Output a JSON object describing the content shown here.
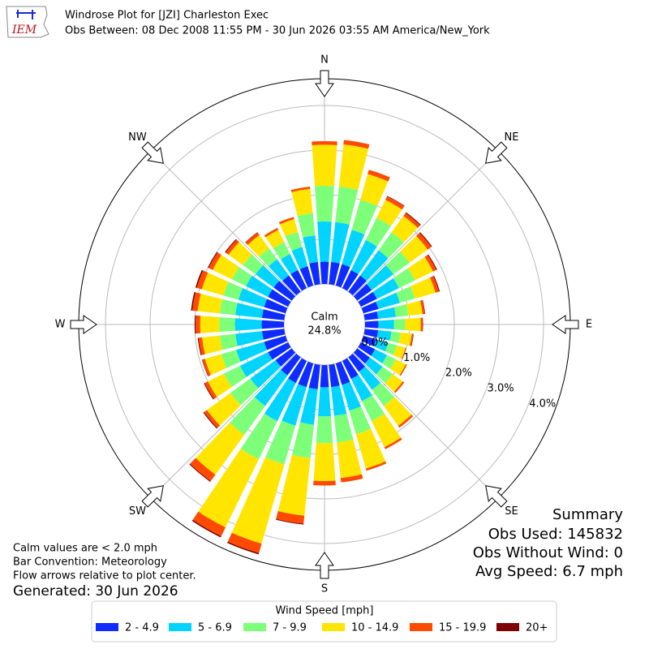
{
  "header": {
    "logo_text": "IEM",
    "title": "Windrose Plot for [JZI] Charleston Exec",
    "subtitle": "Obs Between: 08 Dec 2008 11:55 PM - 30 Jun 2026 03:55 AM America/New_York"
  },
  "chart_data": {
    "type": "windrose",
    "x": [
      0,
      10,
      20,
      30,
      40,
      50,
      60,
      70,
      80,
      90,
      100,
      110,
      120,
      130,
      140,
      150,
      160,
      170,
      180,
      190,
      200,
      210,
      220,
      230,
      240,
      250,
      260,
      270,
      280,
      290,
      300,
      310,
      320,
      330,
      340,
      350
    ],
    "xticks": [
      {
        "value": 0,
        "label": "N"
      },
      {
        "value": 45,
        "label": "NE"
      },
      {
        "value": 90,
        "label": "E"
      },
      {
        "value": 135,
        "label": "SE"
      },
      {
        "value": 180,
        "label": "S"
      },
      {
        "value": 225,
        "label": "SW"
      },
      {
        "value": 270,
        "label": "W"
      },
      {
        "value": 315,
        "label": "NW"
      }
    ],
    "ylim": [
      0,
      4.6
    ],
    "yticks": [
      {
        "value": 0,
        "label": "0.0%"
      },
      {
        "value": 1,
        "label": "1.0%"
      },
      {
        "value": 2,
        "label": "2.0%"
      },
      {
        "value": 3,
        "label": "3.0%"
      },
      {
        "value": 4,
        "label": "4.0%"
      }
    ],
    "calm_label": "Calm",
    "calm_value": 24.8,
    "calm_value_label": "24.8%",
    "legend_title": "Wind Speed [mph]",
    "series": [
      {
        "name": "2 - 4.9",
        "color": "#0f2cff",
        "values": [
          0.5,
          0.5,
          0.5,
          0.45,
          0.45,
          0.4,
          0.4,
          0.35,
          0.3,
          0.3,
          0.3,
          0.3,
          0.35,
          0.35,
          0.4,
          0.45,
          0.5,
          0.5,
          0.5,
          0.55,
          0.55,
          0.55,
          0.5,
          0.45,
          0.5,
          0.5,
          0.5,
          0.5,
          0.5,
          0.5,
          0.5,
          0.5,
          0.45,
          0.45,
          0.45,
          0.5
        ]
      },
      {
        "name": "5 - 6.9",
        "color": "#00d4ff",
        "values": [
          0.9,
          0.9,
          0.8,
          0.75,
          0.7,
          0.6,
          0.55,
          0.5,
          0.4,
          0.35,
          0.3,
          0.28,
          0.3,
          0.35,
          0.5,
          0.55,
          0.6,
          0.65,
          0.65,
          0.8,
          0.9,
          0.95,
          0.85,
          0.7,
          0.7,
          0.65,
          0.6,
          0.6,
          0.6,
          0.6,
          0.55,
          0.5,
          0.45,
          0.4,
          0.45,
          0.6
        ]
      },
      {
        "name": "7 - 9.9",
        "color": "#7dff7a",
        "values": [
          0.8,
          0.8,
          0.7,
          0.55,
          0.5,
          0.45,
          0.4,
          0.35,
          0.28,
          0.25,
          0.2,
          0.2,
          0.22,
          0.28,
          0.45,
          0.5,
          0.55,
          0.6,
          0.6,
          0.75,
          0.9,
          0.95,
          0.8,
          0.55,
          0.4,
          0.35,
          0.35,
          0.35,
          0.35,
          0.35,
          0.35,
          0.35,
          0.3,
          0.3,
          0.35,
          0.5
        ]
      },
      {
        "name": "10 - 14.9",
        "color": "#ffe500",
        "values": [
          0.92,
          0.95,
          0.6,
          0.45,
          0.45,
          0.5,
          0.45,
          0.48,
          0.32,
          0.35,
          0.26,
          0.2,
          0.25,
          0.28,
          0.55,
          0.65,
          0.8,
          0.8,
          0.85,
          1.3,
          1.85,
          1.7,
          1.1,
          0.65,
          0.4,
          0.38,
          0.4,
          0.43,
          0.5,
          0.5,
          0.48,
          0.4,
          0.37,
          0.3,
          0.3,
          0.55
        ]
      },
      {
        "name": "15 - 19.9",
        "color": "#ff4a00",
        "values": [
          0.08,
          0.1,
          0.1,
          0.09,
          0.08,
          0.1,
          0.08,
          0.08,
          0.05,
          0.04,
          0.03,
          0.02,
          0.03,
          0.04,
          0.05,
          0.05,
          0.05,
          0.1,
          0.1,
          0.18,
          0.22,
          0.22,
          0.18,
          0.08,
          0.08,
          0.06,
          0.08,
          0.1,
          0.12,
          0.12,
          0.1,
          0.08,
          0.07,
          0.05,
          0.05,
          0.05
        ]
      },
      {
        "name": "20+",
        "color": "#7f0000",
        "values": [
          0,
          0,
          0,
          0.01,
          0.02,
          0.02,
          0.02,
          0.02,
          0.01,
          0.01,
          0.01,
          0,
          0,
          0,
          0,
          0,
          0,
          0,
          0,
          0.02,
          0.03,
          0.03,
          0.02,
          0.02,
          0.02,
          0.01,
          0.02,
          0.02,
          0.03,
          0.03,
          0.02,
          0.02,
          0.01,
          0,
          0,
          0
        ]
      }
    ]
  },
  "notes": [
    "Calm values are < 2.0 mph",
    "Bar Convention: Meteorology",
    "Flow arrows relative to plot center."
  ],
  "generated": "Generated: 30 Jun 2026",
  "summary": [
    "Summary",
    "Obs Used: 145832",
    "Obs Without Wind: 0",
    "Avg Speed: 6.7 mph"
  ]
}
